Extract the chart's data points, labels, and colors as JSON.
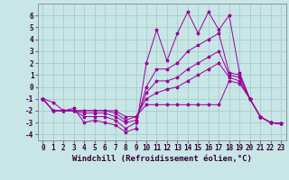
{
  "xlabel": "Windchill (Refroidissement éolien,°C)",
  "bg_color": "#c8e6e6",
  "grid_color": "#a8cccc",
  "line_color": "#990099",
  "x_hours": [
    0,
    1,
    2,
    3,
    4,
    5,
    6,
    7,
    8,
    9,
    10,
    11,
    12,
    13,
    14,
    15,
    16,
    17,
    18,
    19,
    20,
    21,
    22,
    23
  ],
  "series": [
    [
      -1.0,
      -1.3,
      -2.0,
      -1.8,
      -3.0,
      -2.8,
      -3.0,
      -3.2,
      -3.8,
      -3.5,
      2.0,
      4.8,
      2.2,
      4.5,
      6.3,
      4.5,
      6.3,
      4.8,
      6.0,
      1.2,
      -1.0,
      -2.5,
      -3.0,
      -3.1
    ],
    [
      -1.0,
      -2.0,
      -2.0,
      -2.0,
      -2.5,
      -2.5,
      -2.5,
      -2.8,
      -3.5,
      -3.0,
      0.0,
      1.5,
      1.5,
      2.0,
      3.0,
      3.5,
      4.0,
      4.5,
      1.2,
      1.0,
      -1.0,
      -2.5,
      -3.0,
      -3.1
    ],
    [
      -1.0,
      -2.0,
      -2.0,
      -2.0,
      -2.2,
      -2.2,
      -2.2,
      -2.5,
      -3.0,
      -2.8,
      -0.5,
      0.5,
      0.5,
      0.8,
      1.5,
      2.0,
      2.5,
      3.0,
      1.0,
      0.8,
      -1.0,
      -2.5,
      -3.0,
      -3.1
    ],
    [
      -1.0,
      -2.0,
      -2.0,
      -2.0,
      -2.0,
      -2.0,
      -2.0,
      -2.2,
      -2.8,
      -2.5,
      -1.0,
      -0.5,
      -0.2,
      0.0,
      0.5,
      1.0,
      1.5,
      2.0,
      0.8,
      0.5,
      -1.0,
      -2.5,
      -3.0,
      -3.1
    ],
    [
      -1.0,
      -2.0,
      -2.0,
      -2.0,
      -2.0,
      -2.0,
      -2.0,
      -2.0,
      -2.5,
      -2.5,
      -1.5,
      -1.5,
      -1.5,
      -1.5,
      -1.5,
      -1.5,
      -1.5,
      -1.5,
      0.5,
      0.3,
      -1.0,
      -2.5,
      -3.0,
      -3.1
    ]
  ],
  "ylim": [
    -4.5,
    7.0
  ],
  "xlim": [
    -0.5,
    23.5
  ],
  "yticks": [
    -4,
    -3,
    -2,
    -1,
    0,
    1,
    2,
    3,
    4,
    5,
    6
  ],
  "xticks": [
    0,
    1,
    2,
    3,
    4,
    5,
    6,
    7,
    8,
    9,
    10,
    11,
    12,
    13,
    14,
    15,
    16,
    17,
    18,
    19,
    20,
    21,
    22,
    23
  ],
  "tick_fontsize": 5.5,
  "xlabel_fontsize": 6.5,
  "marker": "*",
  "markersize": 2.5,
  "linewidth": 0.7
}
